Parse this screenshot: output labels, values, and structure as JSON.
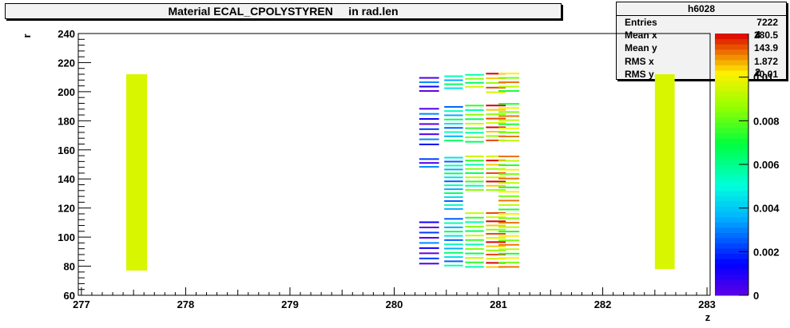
{
  "title": "Material ECAL_CPOLYSTYREN     in rad.len",
  "stats": {
    "name": "h6028",
    "rows": [
      {
        "label": "Entries",
        "value": "7222"
      },
      {
        "label": "Mean x",
        "value": "280.5"
      },
      {
        "label": "Mean y",
        "value": "143.9"
      },
      {
        "label": "RMS x",
        "value": "1.872"
      },
      {
        "label": "RMS y",
        "value": "40.01"
      }
    ]
  },
  "chart_data": {
    "type": "heatmap",
    "xlabel": "z",
    "ylabel": "r",
    "xlim": [
      276.97,
      283.03
    ],
    "ylim": [
      60,
      240
    ],
    "xticks": [
      "277",
      "278",
      "279",
      "280",
      "281",
      "282",
      "283"
    ],
    "yticks": [
      "60",
      "80",
      "100",
      "120",
      "140",
      "160",
      "180",
      "200",
      "220",
      "240"
    ],
    "zlim": [
      0,
      0.012
    ],
    "zticks": [
      "0",
      "0.002",
      "0.004",
      "0.006",
      "0.008",
      "0.01"
    ],
    "colorbar_top_labels": [
      "4",
      "2"
    ],
    "cells": [
      {
        "x0": 277.43,
        "x1": 277.63,
        "y0": 77,
        "y1": 212,
        "z": 0.0096
      },
      {
        "x0": 282.5,
        "x1": 282.69,
        "y0": 78,
        "y1": 212,
        "z": 0.0096
      },
      {
        "x0": 280.24,
        "x1": 280.43,
        "y0": 80,
        "y1": 112,
        "z": 0.0012,
        "rows": 9
      },
      {
        "x0": 280.24,
        "x1": 280.43,
        "y0": 147,
        "y1": 155,
        "z": 0.0012,
        "rows": 3
      },
      {
        "x0": 280.24,
        "x1": 280.43,
        "y0": 162,
        "y1": 190,
        "z": 0.0012,
        "rows": 8
      },
      {
        "x0": 280.24,
        "x1": 280.43,
        "y0": 199,
        "y1": 211,
        "z": 0.0012,
        "rows": 4
      },
      {
        "x0": 280.48,
        "x1": 280.66,
        "y0": 79,
        "y1": 114,
        "z": 0.0045,
        "rows": 12
      },
      {
        "x0": 280.48,
        "x1": 280.66,
        "y0": 118,
        "y1": 156,
        "z": 0.0045,
        "rows": 14
      },
      {
        "x0": 280.48,
        "x1": 280.66,
        "y0": 165,
        "y1": 191,
        "z": 0.0045,
        "rows": 9
      },
      {
        "x0": 280.48,
        "x1": 280.66,
        "y0": 201,
        "y1": 212,
        "z": 0.0045,
        "rows": 4
      },
      {
        "x0": 280.68,
        "x1": 280.86,
        "y0": 78,
        "y1": 118,
        "z": 0.0075,
        "rows": 13
      },
      {
        "x0": 280.68,
        "x1": 280.86,
        "y0": 131,
        "y1": 157,
        "z": 0.0075,
        "rows": 9
      },
      {
        "x0": 280.68,
        "x1": 280.86,
        "y0": 164,
        "y1": 192,
        "z": 0.0075,
        "rows": 9
      },
      {
        "x0": 280.68,
        "x1": 280.86,
        "y0": 202,
        "y1": 213,
        "z": 0.0075,
        "rows": 4
      },
      {
        "x0": 280.88,
        "x1": 281.07,
        "y0": 78,
        "y1": 118,
        "z": 0.0105,
        "rows": 14
      },
      {
        "x0": 280.88,
        "x1": 281.07,
        "y0": 131,
        "y1": 157,
        "z": 0.0105,
        "rows": 9
      },
      {
        "x0": 280.88,
        "x1": 281.07,
        "y0": 165,
        "y1": 192,
        "z": 0.0105,
        "rows": 9
      },
      {
        "x0": 280.88,
        "x1": 281.07,
        "y0": 198,
        "y1": 214,
        "z": 0.0105,
        "rows": 5
      },
      {
        "x0": 281.0,
        "x1": 281.2,
        "y0": 78,
        "y1": 157,
        "z": 0.0092,
        "rows": 26
      },
      {
        "x0": 281.0,
        "x1": 281.2,
        "y0": 165,
        "y1": 193,
        "z": 0.0092,
        "rows": 10
      },
      {
        "x0": 281.0,
        "x1": 281.2,
        "y0": 199,
        "y1": 214,
        "z": 0.0092,
        "rows": 5
      }
    ]
  }
}
